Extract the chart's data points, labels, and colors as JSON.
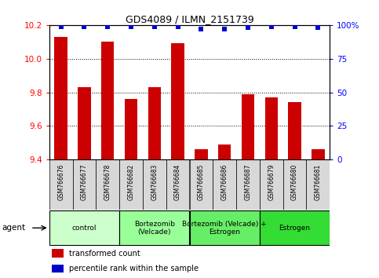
{
  "title": "GDS4089 / ILMN_2151739",
  "samples": [
    "GSM766676",
    "GSM766677",
    "GSM766678",
    "GSM766682",
    "GSM766683",
    "GSM766684",
    "GSM766685",
    "GSM766686",
    "GSM766687",
    "GSM766679",
    "GSM766680",
    "GSM766681"
  ],
  "bar_values": [
    10.13,
    9.83,
    10.1,
    9.76,
    9.83,
    10.09,
    9.46,
    9.49,
    9.79,
    9.77,
    9.74,
    9.46
  ],
  "percentile_values": [
    99,
    99,
    99,
    99,
    99,
    99,
    97,
    97,
    98,
    99,
    99,
    98
  ],
  "ylim_left": [
    9.4,
    10.2
  ],
  "ylim_right": [
    0,
    100
  ],
  "yticks_left": [
    9.4,
    9.6,
    9.8,
    10.0,
    10.2
  ],
  "yticks_right": [
    0,
    25,
    50,
    75,
    100
  ],
  "ytick_labels_right": [
    "0",
    "25",
    "50",
    "75",
    "100%"
  ],
  "grid_values": [
    9.6,
    9.8,
    10.0
  ],
  "bar_color": "#cc0000",
  "percentile_color": "#0000cc",
  "agent_groups": [
    {
      "label": "control",
      "start": 0,
      "end": 3,
      "color": "#ccffcc"
    },
    {
      "label": "Bortezomib\n(Velcade)",
      "start": 3,
      "end": 6,
      "color": "#99ff99"
    },
    {
      "label": "Bortezomib (Velcade) +\nEstrogen",
      "start": 6,
      "end": 9,
      "color": "#66ee66"
    },
    {
      "label": "Estrogen",
      "start": 9,
      "end": 12,
      "color": "#33dd33"
    }
  ],
  "legend_bar_label": "transformed count",
  "legend_pct_label": "percentile rank within the sample",
  "bar_width": 0.55,
  "xlim": [
    -0.5,
    11.5
  ]
}
